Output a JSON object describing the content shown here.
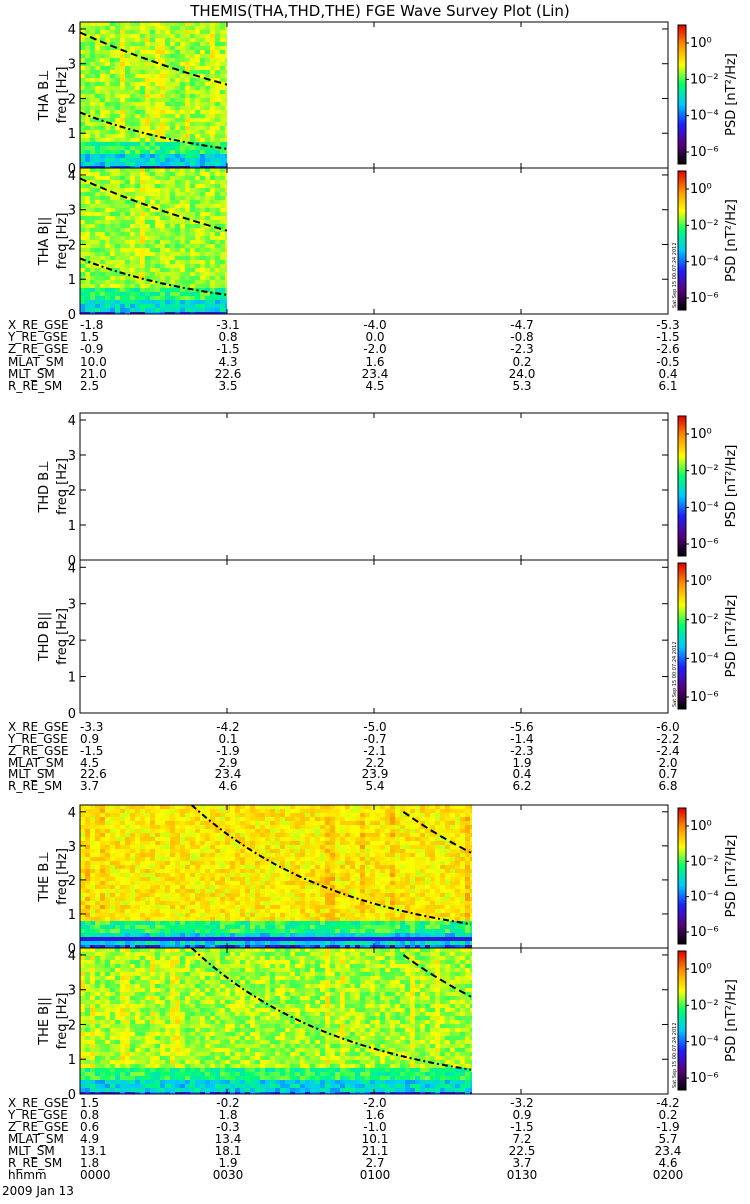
{
  "title": "THEMIS(THA,THD,THE) FGE Wave Survey Plot (Lin)",
  "date_label": "2009 Jan 13",
  "stamp": "Sat Sep 15 00:07:24 2012",
  "colors": {
    "dashed_curve": "#000000",
    "dashdot_curve": "#000000",
    "colorbar_scale": [
      "#000000",
      "#5a0080",
      "#2020ff",
      "#00c8ff",
      "#00ff70",
      "#ffff00",
      "#ff9000",
      "#e00000"
    ]
  },
  "chart_data": [
    {
      "type": "heatmap",
      "probe": "THA",
      "component": "perp",
      "ylabel_probe": "THA B⊥",
      "ylabel_axis": "freq [Hz]",
      "y_ticks": [
        "0",
        "1",
        "2",
        "3",
        "4"
      ],
      "ylim": [
        0,
        4.2
      ],
      "data_x_range_hhmm": [
        "0000",
        "0030"
      ],
      "dashed_curve": [
        [
          3.9,
          0.0
        ],
        [
          2.4,
          0.5
        ]
      ],
      "dashdot_curve": [
        [
          1.6,
          0.0
        ],
        [
          0.55,
          0.5
        ]
      ],
      "colorbar": {
        "label": "PSD [nT²/Hz]",
        "ticks": [
          "10⁰",
          "10⁻²",
          "10⁻⁴",
          "10⁻⁶"
        ],
        "stamp": false
      }
    },
    {
      "type": "heatmap",
      "probe": "THA",
      "component": "par",
      "ylabel_probe": "THA B||",
      "ylabel_axis": "freq [Hz]",
      "y_ticks": [
        "0",
        "1",
        "2",
        "3",
        "4"
      ],
      "ylim": [
        0,
        4.2
      ],
      "data_x_range_hhmm": [
        "0000",
        "0030"
      ],
      "dashed_curve": [
        [
          3.9,
          0.0
        ],
        [
          2.4,
          0.5
        ]
      ],
      "dashdot_curve": [
        [
          1.6,
          0.0
        ],
        [
          0.55,
          0.5
        ]
      ],
      "colorbar": {
        "label": "PSD [nT²/Hz]",
        "ticks": [
          "10⁰",
          "10⁻²",
          "10⁻⁴",
          "10⁻⁶"
        ],
        "stamp": true
      }
    },
    {
      "type": "heatmap",
      "probe": "THD",
      "component": "perp",
      "ylabel_probe": "THD B⊥",
      "ylabel_axis": "freq [Hz]",
      "y_ticks": [
        "0",
        "1",
        "2",
        "3",
        "4"
      ],
      "ylim": [
        0,
        4.2
      ],
      "data_x_range_hhmm": null,
      "colorbar": {
        "label": "PSD [nT²/Hz]",
        "ticks": [
          "10⁰",
          "10⁻²",
          "10⁻⁴",
          "10⁻⁶"
        ],
        "stamp": false
      }
    },
    {
      "type": "heatmap",
      "probe": "THD",
      "component": "par",
      "ylabel_probe": "THD B||",
      "ylabel_axis": "freq [Hz]",
      "y_ticks": [
        "0",
        "1",
        "2",
        "3",
        "4"
      ],
      "ylim": [
        0,
        4.2
      ],
      "data_x_range_hhmm": null,
      "colorbar": {
        "label": "PSD [nT²/Hz]",
        "ticks": [
          "10⁰",
          "10⁻²",
          "10⁻⁴",
          "10⁻⁶"
        ],
        "stamp": true
      }
    },
    {
      "type": "heatmap",
      "probe": "THE",
      "component": "perp",
      "ylabel_probe": "THE B⊥",
      "ylabel_axis": "freq [Hz]",
      "y_ticks": [
        "0",
        "1",
        "2",
        "3",
        "4"
      ],
      "ylim": [
        0,
        4.2
      ],
      "data_x_range_hhmm": [
        "0000",
        "0120"
      ],
      "dashed_curve": [
        [
          4.0,
          1.1
        ],
        [
          2.8,
          1.33
        ]
      ],
      "dashdot_curve": [
        [
          4.2,
          0.38
        ],
        [
          0.7,
          1.33
        ]
      ],
      "colorbar": {
        "label": "PSD [nT²/Hz]",
        "ticks": [
          "10⁰",
          "10⁻²",
          "10⁻⁴",
          "10⁻⁶"
        ],
        "stamp": false
      }
    },
    {
      "type": "heatmap",
      "probe": "THE",
      "component": "par",
      "ylabel_probe": "THE B||",
      "ylabel_axis": "freq [Hz]",
      "y_ticks": [
        "0",
        "1",
        "2",
        "3",
        "4"
      ],
      "ylim": [
        0,
        4.2
      ],
      "data_x_range_hhmm": [
        "0000",
        "0120"
      ],
      "dashed_curve": [
        [
          4.0,
          1.1
        ],
        [
          2.8,
          1.33
        ]
      ],
      "dashdot_curve": [
        [
          4.2,
          0.38
        ],
        [
          0.7,
          1.33
        ]
      ],
      "colorbar": {
        "label": "PSD [nT²/Hz]",
        "ticks": [
          "10⁰",
          "10⁻²",
          "10⁻⁴",
          "10⁻⁶"
        ],
        "stamp": true
      }
    }
  ],
  "orbit_tables": [
    {
      "probe": "THA",
      "rows": [
        {
          "label": "X_RE_GSE",
          "values": [
            "-1.8",
            "-3.1",
            "-4.0",
            "-4.7",
            "-5.3"
          ]
        },
        {
          "label": "Y_RE_GSE",
          "values": [
            "1.5",
            "0.8",
            "0.0",
            "-0.8",
            "-1.5"
          ]
        },
        {
          "label": "Z_RE_GSE",
          "values": [
            "-0.9",
            "-1.5",
            "-2.0",
            "-2.3",
            "-2.6"
          ]
        },
        {
          "label": "MLAT_SM",
          "values": [
            "10.0",
            "4.3",
            "1.6",
            "0.2",
            "-0.5"
          ]
        },
        {
          "label": "MLT_SM",
          "values": [
            "21.0",
            "22.6",
            "23.4",
            "24.0",
            "0.4"
          ]
        },
        {
          "label": "R_RE_SM",
          "values": [
            "2.5",
            "3.5",
            "4.5",
            "5.3",
            "6.1"
          ]
        }
      ]
    },
    {
      "probe": "THD",
      "rows": [
        {
          "label": "X_RE_GSE",
          "values": [
            "-3.3",
            "-4.2",
            "-5.0",
            "-5.6",
            "-6.0"
          ]
        },
        {
          "label": "Y_RE_GSE",
          "values": [
            "0.9",
            "0.1",
            "-0.7",
            "-1.4",
            "-2.2"
          ]
        },
        {
          "label": "Z_RE_GSE",
          "values": [
            "-1.5",
            "-1.9",
            "-2.1",
            "-2.3",
            "-2.4"
          ]
        },
        {
          "label": "MLAT_SM",
          "values": [
            "4.5",
            "2.9",
            "2.2",
            "1.9",
            "2.0"
          ]
        },
        {
          "label": "MLT_SM",
          "values": [
            "22.6",
            "23.4",
            "23.9",
            "0.4",
            "0.7"
          ]
        },
        {
          "label": "R_RE_SM",
          "values": [
            "3.7",
            "4.6",
            "5.4",
            "6.2",
            "6.8"
          ]
        }
      ]
    },
    {
      "probe": "THE",
      "rows": [
        {
          "label": "X_RE_GSE",
          "values": [
            "1.5",
            "-0.2",
            "-2.0",
            "-3.2",
            "-4.2"
          ]
        },
        {
          "label": "Y_RE_GSE",
          "values": [
            "0.8",
            "1.8",
            "1.6",
            "0.9",
            "0.2"
          ]
        },
        {
          "label": "Z_RE_GSE",
          "values": [
            "0.6",
            "-0.3",
            "-1.0",
            "-1.5",
            "-1.9"
          ]
        },
        {
          "label": "MLAT_SM",
          "values": [
            "4.9",
            "13.4",
            "10.1",
            "7.2",
            "5.7"
          ]
        },
        {
          "label": "MLT_SM",
          "values": [
            "13.1",
            "18.1",
            "21.1",
            "22.5",
            "23.4"
          ]
        },
        {
          "label": "R_RE_SM",
          "values": [
            "1.8",
            "1.9",
            "2.7",
            "3.7",
            "4.6"
          ]
        },
        {
          "label": "hhmm",
          "values": [
            "0000",
            "0030",
            "0100",
            "0130",
            "0200"
          ]
        }
      ]
    }
  ]
}
